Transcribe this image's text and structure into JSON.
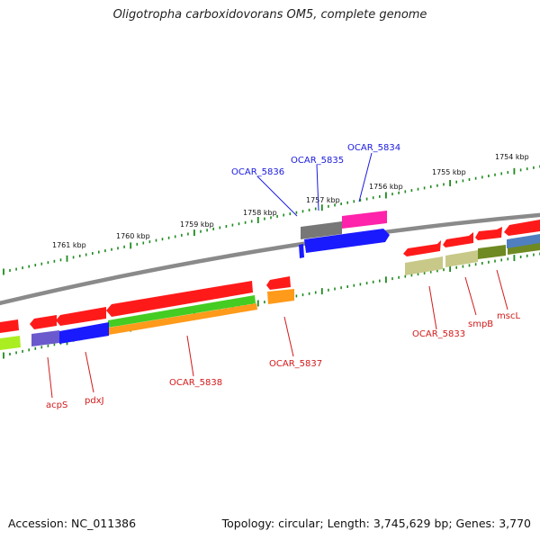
{
  "header": {
    "title": "Oligotropha carboxidovorans OM5, complete genome"
  },
  "footer": {
    "accession": "Accession: NC_011386",
    "summary": "Topology: circular; Length: 3,745,629 bp; Genes: 3,770"
  },
  "colors": {
    "backbone": "#8a8a8a",
    "tick_outer": "#1e8a1e",
    "tick_inner": "#1e8a1e",
    "label_forward": "#1a1adf",
    "label_reverse": "#d21a1a",
    "red": "#ff1a1a",
    "blue": "#1a1aff",
    "magenta": "#ff22aa",
    "grey": "#777777",
    "green": "#44cc22",
    "orange": "#ff9a1a",
    "lime": "#aaee22",
    "olive": "#c8c888",
    "darkolive": "#6f8a22",
    "purple": "#6a5acd",
    "steelblue": "#4f7fbf"
  },
  "scale": {
    "unit": "kbp",
    "ticks": [
      "1754 kbp",
      "1755 kbp",
      "1756 kbp",
      "1757 kbp",
      "1758 kbp",
      "1759 kbp",
      "1760 kbp",
      "1761 kbp"
    ]
  },
  "gene_labels": {
    "forward": [
      "OCAR_5836",
      "OCAR_5835",
      "OCAR_5834"
    ],
    "reverse": [
      "OCAR_5833",
      "smpB",
      "mscL",
      "OCAR_5837",
      "OCAR_5838",
      "pdxJ",
      "acpS"
    ]
  }
}
